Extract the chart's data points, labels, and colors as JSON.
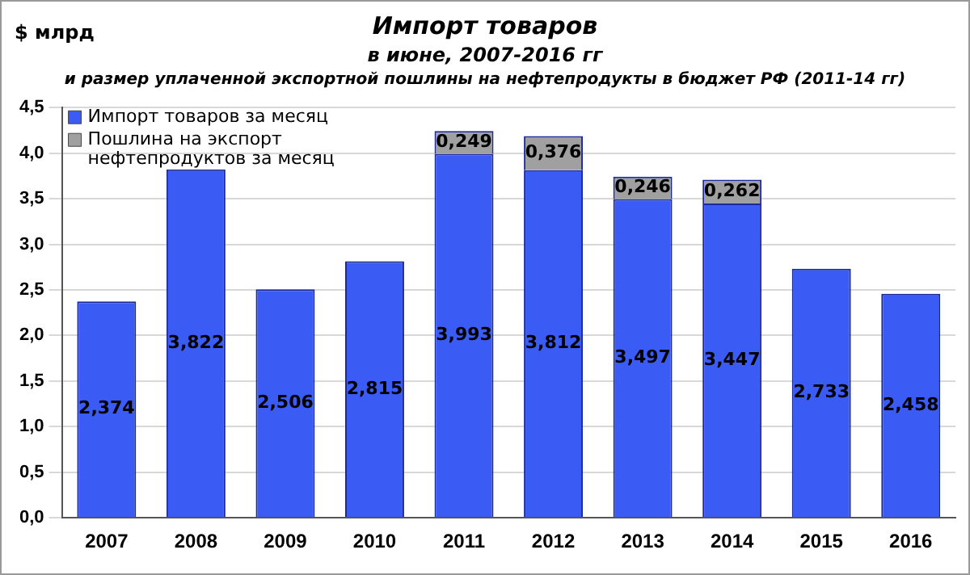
{
  "chart_data": {
    "type": "bar",
    "title": "Импорт товаров",
    "subtitle": "в июне, 2007-2016 гг",
    "ylabel": "$ млрд",
    "annotations": [
      "и размер уплаченной  экспортной  пошлины  на нефтепродукты  в бюджет РФ (2011-14 гг)"
    ],
    "categories": [
      "2007",
      "2008",
      "2009",
      "2010",
      "2011",
      "2012",
      "2013",
      "2014",
      "2015",
      "2016"
    ],
    "stacked": true,
    "series": [
      {
        "name": "Импорт товаров за месяц",
        "color": "#3b5cf4",
        "values": [
          2.374,
          3.822,
          2.506,
          2.815,
          3.993,
          3.812,
          3.497,
          3.447,
          2.733,
          2.458
        ],
        "value_labels": [
          "2,374",
          "3,822",
          "2,506",
          "2,815",
          "3,993",
          "3,812",
          "3,497",
          "3,447",
          "2,733",
          "2,458"
        ]
      },
      {
        "name": "Пошлина на экспорт нефтепродуктов за месяц",
        "color": "#a0a0a0",
        "values": [
          null,
          null,
          null,
          null,
          0.249,
          0.376,
          0.246,
          0.262,
          null,
          null
        ],
        "value_labels": [
          null,
          null,
          null,
          null,
          "0,249",
          "0,376",
          "0,246",
          "0,262",
          null,
          null
        ]
      }
    ],
    "ylim": [
      0,
      4.5
    ],
    "yticks": [
      {
        "value": 0,
        "label": "0,0"
      },
      {
        "value": 0.5,
        "label": "0,5"
      },
      {
        "value": 1,
        "label": "1,0"
      },
      {
        "value": 1.5,
        "label": "1,5"
      },
      {
        "value": 2,
        "label": "2,0"
      },
      {
        "value": 2.5,
        "label": "2,5"
      },
      {
        "value": 3,
        "label": "3,0"
      },
      {
        "value": 3.5,
        "label": "3,5"
      },
      {
        "value": 4,
        "label": "4,0"
      },
      {
        "value": 4.5,
        "label": "4,5"
      }
    ],
    "grid": "y",
    "legend": "top left",
    "data_labels": false
  }
}
